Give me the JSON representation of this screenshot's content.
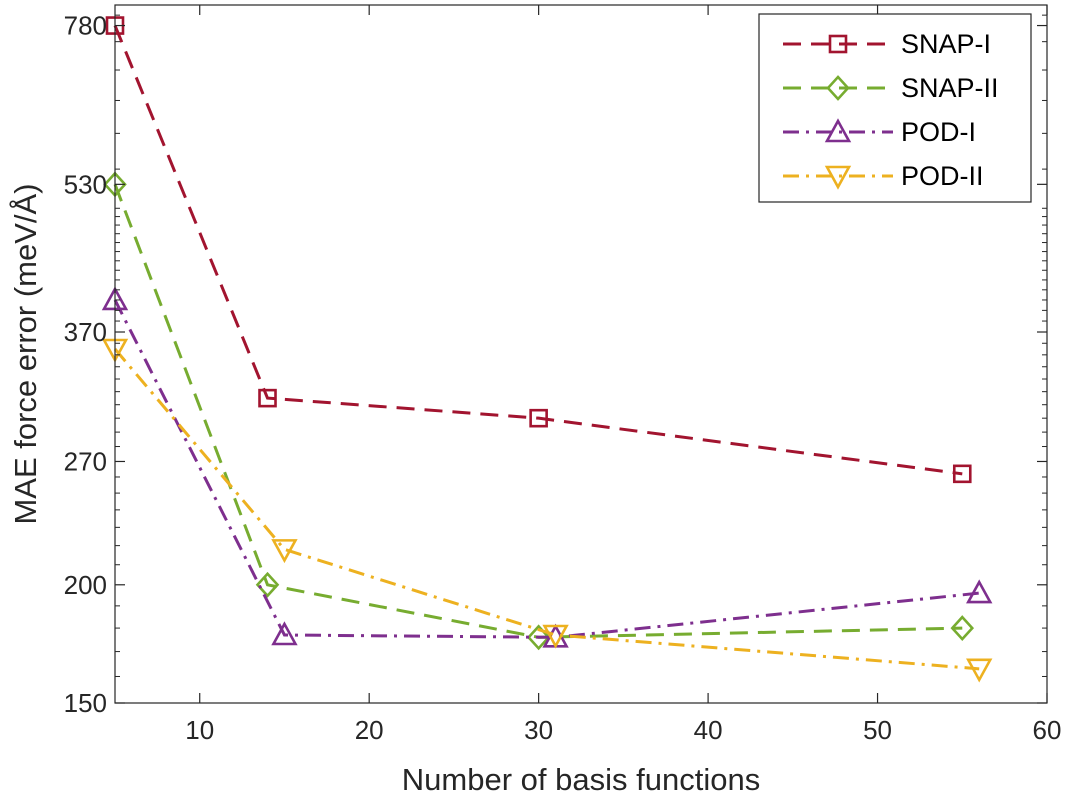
{
  "chart_data": {
    "type": "line",
    "title": "",
    "xlabel": "Number of basis functions",
    "ylabel": "MAE force error (meV/Å)",
    "y_scale": "log",
    "xlim": [
      5,
      60
    ],
    "ylim": [
      150,
      820
    ],
    "xticks": [
      10,
      20,
      30,
      40,
      50,
      60
    ],
    "yticks": [
      150,
      200,
      270,
      370,
      530,
      780
    ],
    "grid": false,
    "legend_position": "top-right",
    "series": [
      {
        "name": "SNAP-I",
        "color": "#A2142F",
        "line_style": "dashed",
        "marker": "square",
        "x": [
          5,
          14,
          30,
          55
        ],
        "y": [
          780,
          315,
          300,
          262
        ]
      },
      {
        "name": "SNAP-II",
        "color": "#77AC30",
        "line_style": "dashed",
        "marker": "diamond",
        "x": [
          5,
          14,
          30,
          55
        ],
        "y": [
          530,
          200,
          176,
          180
        ]
      },
      {
        "name": "POD-I",
        "color": "#7E2F8E",
        "line_style": "dash-dot",
        "marker": "triangle-up",
        "x": [
          5,
          15,
          31,
          56
        ],
        "y": [
          400,
          177,
          176,
          196
        ]
      },
      {
        "name": "POD-II",
        "color": "#EDB120",
        "line_style": "dash-dot",
        "marker": "triangle-down",
        "x": [
          5,
          15,
          31,
          56
        ],
        "y": [
          355,
          218,
          177,
          163
        ]
      }
    ]
  }
}
